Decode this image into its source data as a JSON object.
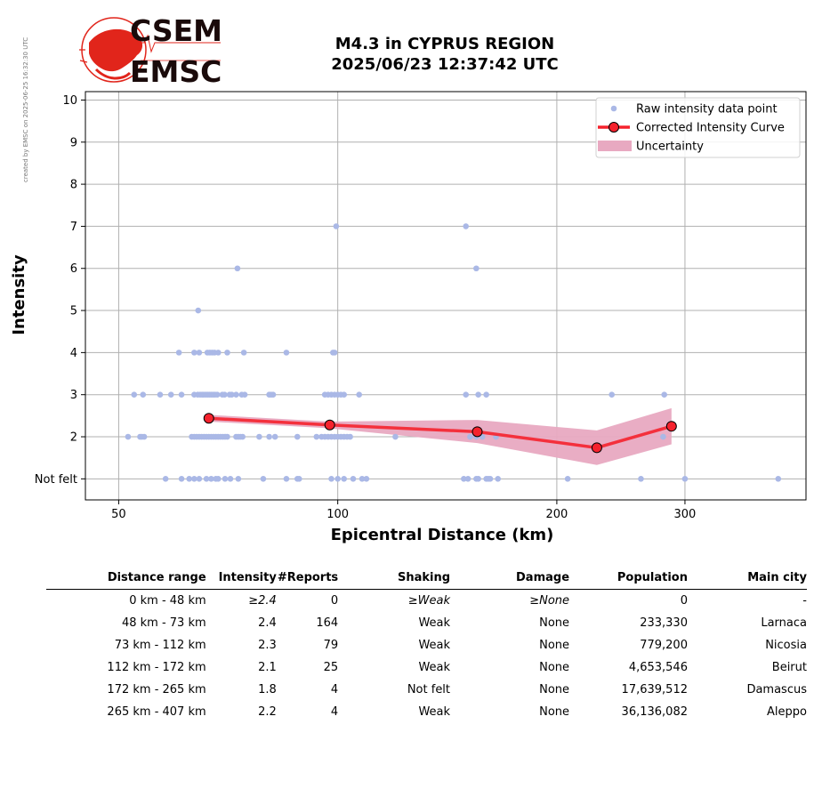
{
  "side_note": "created by EMSC on 2025-06-25 16:32:30 UTC",
  "logo": {
    "top": "CSEM",
    "bottom": "EMSC",
    "colors": {
      "red": "#e1251b",
      "dark": "#1a0a0a"
    }
  },
  "title": {
    "line1": "M4.3 in CYPRUS REGION",
    "line2": "2025/06/23 12:37:42 UTC"
  },
  "chart_data": {
    "type": "scatter",
    "title": "M4.3 in CYPRUS REGION 2025/06/23 12:37:42 UTC",
    "xlabel": "Epicentral Distance (km)",
    "ylabel": "Intensity",
    "xscale": "log",
    "xlim": [
      45,
      440
    ],
    "ylim": [
      0.5,
      10.2
    ],
    "xticks": [
      50,
      100,
      200,
      300
    ],
    "yticks": [
      1,
      2,
      3,
      4,
      5,
      6,
      7,
      8,
      9,
      10
    ],
    "ytick_labels": [
      "Not felt",
      "2",
      "3",
      "4",
      "5",
      "6",
      "7",
      "8",
      "9",
      "10"
    ],
    "grid": true,
    "legend": {
      "placement": "top-right",
      "entries": [
        "Raw intensity data point",
        "Corrected Intensity Curve",
        "Uncertainty"
      ]
    },
    "colors": {
      "raw": "#aab8e6",
      "curve": "#f5222d",
      "marker_edge": "#000000",
      "band": "#e8a9c1"
    },
    "series": [
      {
        "name": "Raw intensity data point",
        "points": [
          [
            51.5,
            2
          ],
          [
            53.5,
            2
          ],
          [
            53.8,
            2
          ],
          [
            54.2,
            2
          ],
          [
            52.5,
            3
          ],
          [
            54,
            3
          ],
          [
            57,
            3
          ],
          [
            59,
            3
          ],
          [
            61,
            3
          ],
          [
            63.5,
            3
          ],
          [
            64.2,
            3
          ],
          [
            64.7,
            3
          ],
          [
            65.1,
            3
          ],
          [
            65.4,
            3
          ],
          [
            65.8,
            3
          ],
          [
            66.2,
            3
          ],
          [
            66.6,
            3
          ],
          [
            67,
            3
          ],
          [
            67.4,
            3
          ],
          [
            67.8,
            3
          ],
          [
            68.3,
            3
          ],
          [
            69.4,
            3
          ],
          [
            69.9,
            3
          ],
          [
            71,
            3
          ],
          [
            71.5,
            3
          ],
          [
            72.5,
            3
          ],
          [
            73.8,
            3
          ],
          [
            74.5,
            3
          ],
          [
            80.5,
            3
          ],
          [
            81,
            3
          ],
          [
            81.5,
            3
          ],
          [
            96,
            3
          ],
          [
            97,
            3
          ],
          [
            98,
            3
          ],
          [
            99,
            3
          ],
          [
            100,
            3
          ],
          [
            101,
            3
          ],
          [
            102,
            3
          ],
          [
            107,
            3
          ],
          [
            150,
            3
          ],
          [
            156,
            3
          ],
          [
            160,
            3
          ],
          [
            238,
            3
          ],
          [
            281,
            3
          ],
          [
            63,
            2
          ],
          [
            63.5,
            2
          ],
          [
            64,
            2
          ],
          [
            64.5,
            2
          ],
          [
            65,
            2
          ],
          [
            65.5,
            2
          ],
          [
            66,
            2
          ],
          [
            66.5,
            2
          ],
          [
            67,
            2
          ],
          [
            67.5,
            2
          ],
          [
            68,
            2
          ],
          [
            68.5,
            2
          ],
          [
            69,
            2
          ],
          [
            69.5,
            2
          ],
          [
            70,
            2
          ],
          [
            70.5,
            2
          ],
          [
            72.5,
            2
          ],
          [
            73,
            2
          ],
          [
            73.5,
            2
          ],
          [
            74,
            2
          ],
          [
            78,
            2
          ],
          [
            80.5,
            2
          ],
          [
            82,
            2
          ],
          [
            88,
            2
          ],
          [
            93.5,
            2
          ],
          [
            95,
            2
          ],
          [
            96,
            2
          ],
          [
            97,
            2
          ],
          [
            98,
            2
          ],
          [
            99,
            2
          ],
          [
            100,
            2
          ],
          [
            101,
            2
          ],
          [
            102,
            2
          ],
          [
            103,
            2
          ],
          [
            104,
            2
          ],
          [
            120,
            2
          ],
          [
            152,
            2
          ],
          [
            155,
            2
          ],
          [
            158,
            2
          ],
          [
            165,
            2
          ],
          [
            280,
            2
          ],
          [
            58,
            1
          ],
          [
            61,
            1
          ],
          [
            62.5,
            1
          ],
          [
            63.5,
            1
          ],
          [
            64.5,
            1
          ],
          [
            66,
            1
          ],
          [
            67,
            1
          ],
          [
            68,
            1
          ],
          [
            68.5,
            1
          ],
          [
            70,
            1
          ],
          [
            71.2,
            1
          ],
          [
            73,
            1
          ],
          [
            79,
            1
          ],
          [
            85,
            1
          ],
          [
            88,
            1
          ],
          [
            88.5,
            1
          ],
          [
            98,
            1
          ],
          [
            100,
            1
          ],
          [
            102,
            1
          ],
          [
            105,
            1
          ],
          [
            108,
            1
          ],
          [
            109.5,
            1
          ],
          [
            149,
            1
          ],
          [
            151,
            1
          ],
          [
            155,
            1
          ],
          [
            156,
            1
          ],
          [
            160,
            1
          ],
          [
            161,
            1
          ],
          [
            162,
            1
          ],
          [
            166,
            1
          ],
          [
            207,
            1
          ],
          [
            261,
            1
          ],
          [
            300,
            1
          ],
          [
            403,
            1
          ],
          [
            60.5,
            4
          ],
          [
            63.5,
            4
          ],
          [
            64.5,
            4
          ],
          [
            66.2,
            4
          ],
          [
            66.7,
            4
          ],
          [
            67.2,
            4
          ],
          [
            67.7,
            4
          ],
          [
            68.5,
            4
          ],
          [
            70.5,
            4
          ],
          [
            74.3,
            4
          ],
          [
            85,
            4
          ],
          [
            98.5,
            4
          ],
          [
            99,
            4
          ],
          [
            64.3,
            5
          ],
          [
            72.8,
            6
          ],
          [
            155,
            6
          ],
          [
            99.5,
            7
          ],
          [
            150,
            7
          ]
        ]
      },
      {
        "name": "Corrected Intensity Curve",
        "points": [
          [
            66.5,
            2.44
          ],
          [
            97.5,
            2.28
          ],
          [
            155.5,
            2.12
          ],
          [
            227,
            1.74
          ],
          [
            287.5,
            2.25
          ]
        ],
        "upper": [
          [
            66.5,
            2.52
          ],
          [
            97.5,
            2.36
          ],
          [
            155.5,
            2.4
          ],
          [
            227,
            2.15
          ],
          [
            287.5,
            2.68
          ]
        ],
        "lower": [
          [
            66.5,
            2.36
          ],
          [
            97.5,
            2.2
          ],
          [
            155.5,
            1.85
          ],
          [
            227,
            1.33
          ],
          [
            287.5,
            1.82
          ]
        ]
      }
    ]
  },
  "table": {
    "headers": [
      "Distance range",
      "Intensity",
      "#Reports",
      "Shaking",
      "Damage",
      "Population",
      "Main city"
    ],
    "rows": [
      {
        "range": "0 km -   48 km",
        "intensity": "≥2.4",
        "reports": "0",
        "shaking": "≥Weak",
        "damage": "≥None",
        "population": "0",
        "city": "-"
      },
      {
        "range": "48 km -   73 km",
        "intensity": "2.4",
        "reports": "164",
        "shaking": "Weak",
        "damage": "None",
        "population": "233,330",
        "city": "Larnaca"
      },
      {
        "range": "73 km -  112 km",
        "intensity": "2.3",
        "reports": "79",
        "shaking": "Weak",
        "damage": "None",
        "population": "779,200",
        "city": "Nicosia"
      },
      {
        "range": "112 km -  172 km",
        "intensity": "2.1",
        "reports": "25",
        "shaking": "Weak",
        "damage": "None",
        "population": "4,653,546",
        "city": "Beirut"
      },
      {
        "range": "172 km -  265 km",
        "intensity": "1.8",
        "reports": "4",
        "shaking": "Not felt",
        "damage": "None",
        "population": "17,639,512",
        "city": "Damascus"
      },
      {
        "range": "265 km -  407 km",
        "intensity": "2.2",
        "reports": "4",
        "shaking": "Weak",
        "damage": "None",
        "population": "36,136,082",
        "city": "Aleppo"
      }
    ]
  }
}
